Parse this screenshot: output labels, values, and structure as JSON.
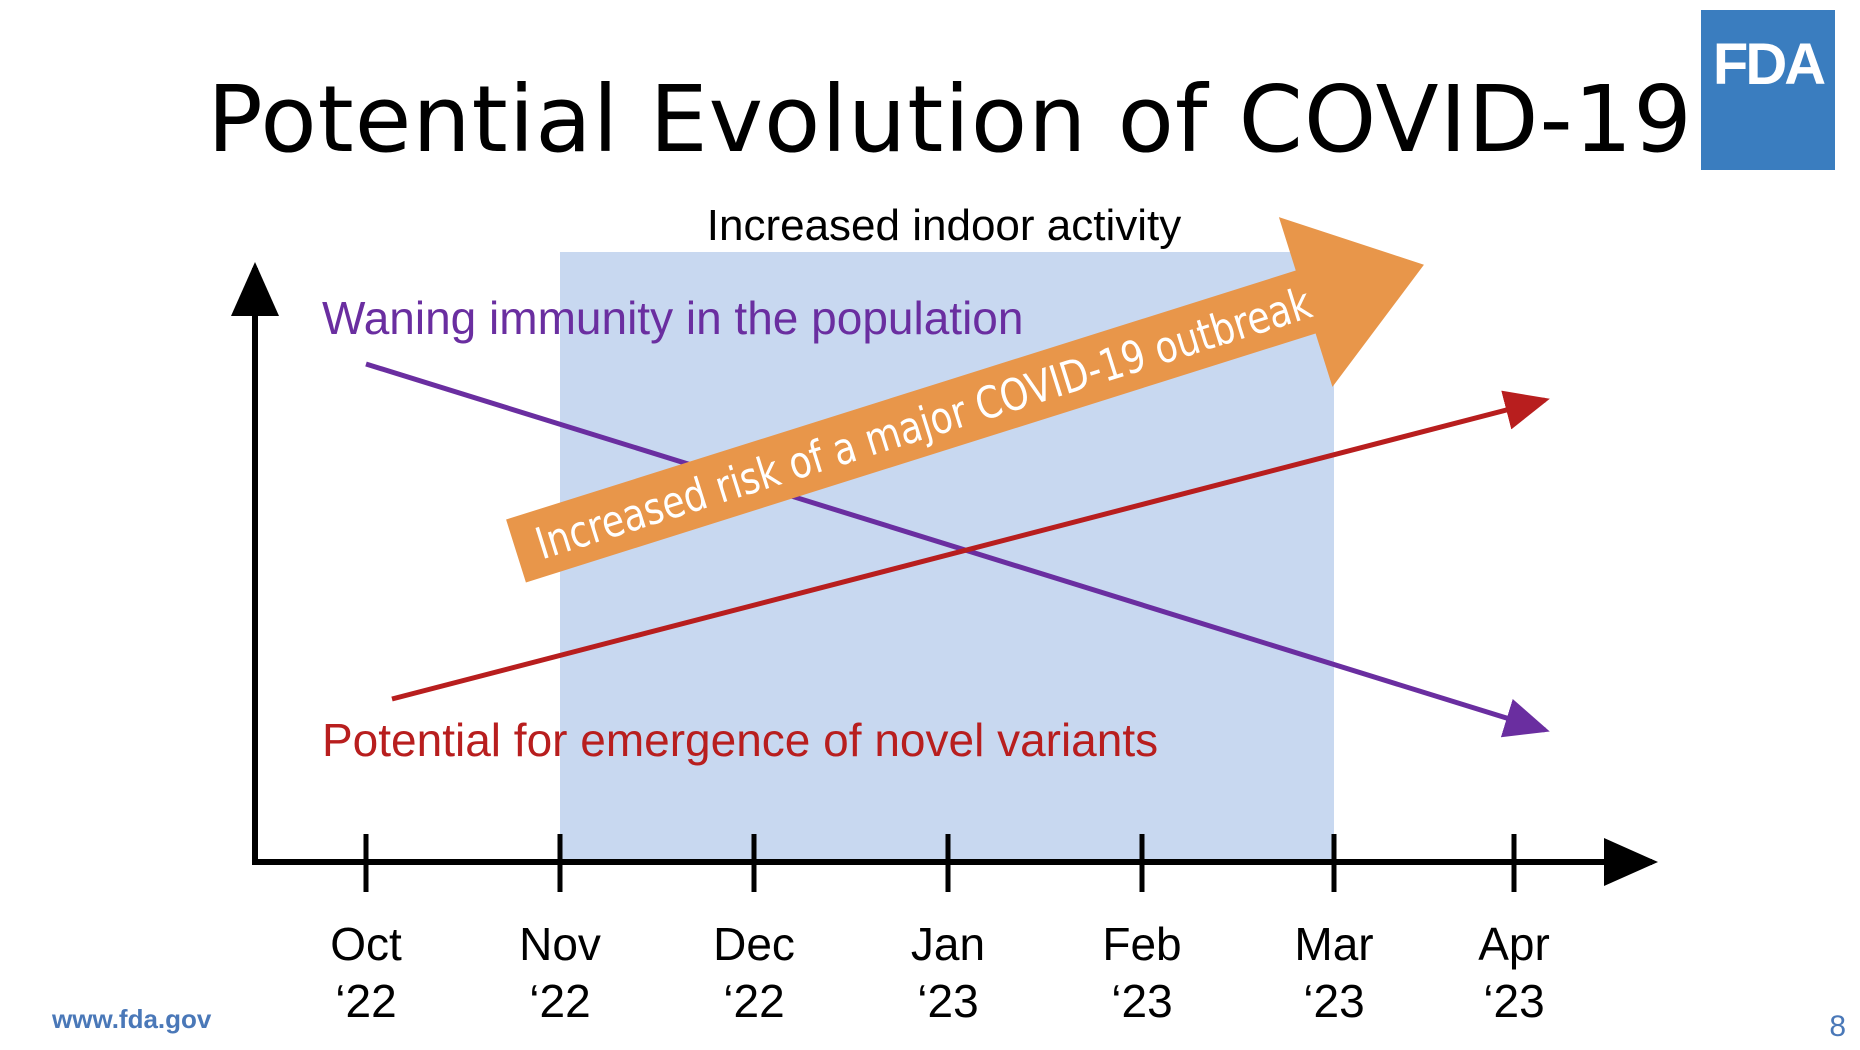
{
  "slide": {
    "title": "Potential Evolution of COVID-19",
    "logo_text": "FDA",
    "footer_url": "www.fda.gov",
    "page_number": "8"
  },
  "diagram": {
    "shaded_region_label": "Increased indoor activity",
    "waning_label": "Waning immunity in the population",
    "variants_label": "Potential for emergence of novel variants",
    "risk_arrow_label": "Increased risk of a major COVID-19 outbreak",
    "shaded_region_span": [
      "Nov ‘22",
      "Mar ‘23"
    ],
    "timeline": [
      {
        "month": "Oct",
        "year": "‘22"
      },
      {
        "month": "Nov",
        "year": "‘22"
      },
      {
        "month": "Dec",
        "year": "‘22"
      },
      {
        "month": "Jan",
        "year": "‘23"
      },
      {
        "month": "Feb",
        "year": "‘23"
      },
      {
        "month": "Mar",
        "year": "‘23"
      },
      {
        "month": "Apr",
        "year": "‘23"
      }
    ],
    "trends": {
      "waning_immunity": "decreasing",
      "novel_variants": "increasing",
      "outbreak_risk": "increasing"
    },
    "colors": {
      "shaded_region": "#c8d8f0",
      "waning": "#6a2ea0",
      "variants": "#b81e1e",
      "risk_arrow": "#e8964a",
      "axis": "#000000",
      "logo": "#3a7dbf",
      "footer": "#4a78b8"
    }
  }
}
